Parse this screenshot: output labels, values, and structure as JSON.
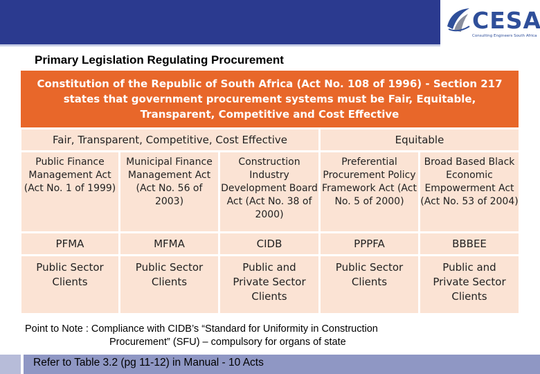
{
  "logo": {
    "name": "CESA",
    "tagline": "Consulting Engineers South Africa",
    "colors": {
      "blue": "#2f4f9a",
      "grey": "#8a8f9e"
    }
  },
  "title": "Primary Legislation Regulating Procurement",
  "banner": "Constitution of the Republic of South Africa (Act No. 108 of 1996) - Section 217 states that government procurement systems must be Fair, Equitable, Transparent, Competitive and Cost Effective",
  "groups": {
    "left": "Fair, Transparent, Competitive, Cost Effective",
    "right": "Equitable"
  },
  "acts": [
    "Public Finance Management Act (Act No. 1 of 1999)",
    "Municipal Finance Management Act (Act No. 56 of 2003)",
    "Construction Industry Development Board Act (Act No. 38 of 2000)",
    "Preferential Procurement Policy Framework Act (Act No. 5 of 2000)",
    "Broad Based Black Economic Empowerment Act (Act No. 53 of 2004)"
  ],
  "abbreviations": [
    "PFMA",
    "MFMA",
    "CIDB",
    "PPPFA",
    "BBBEE"
  ],
  "clients": [
    "Public Sector Clients",
    "Public Sector Clients",
    "Public and Private Sector Clients",
    "Public Sector Clients",
    "Public and Private Sector Clients"
  ],
  "note": {
    "line1": "Point to Note : Compliance with CIDB’s “Standard for Uniformity in Construction",
    "line2": "Procurement” (SFU) – compulsory for organs of state"
  },
  "reference": "Refer to Table 3.2 (pg 11-12) in Manual - 10 Acts",
  "colors": {
    "header_bar": "#2b3a8f",
    "banner": "#e8672a",
    "cell": "#fbe3d4",
    "footer_bar": "#8f97c4"
  }
}
